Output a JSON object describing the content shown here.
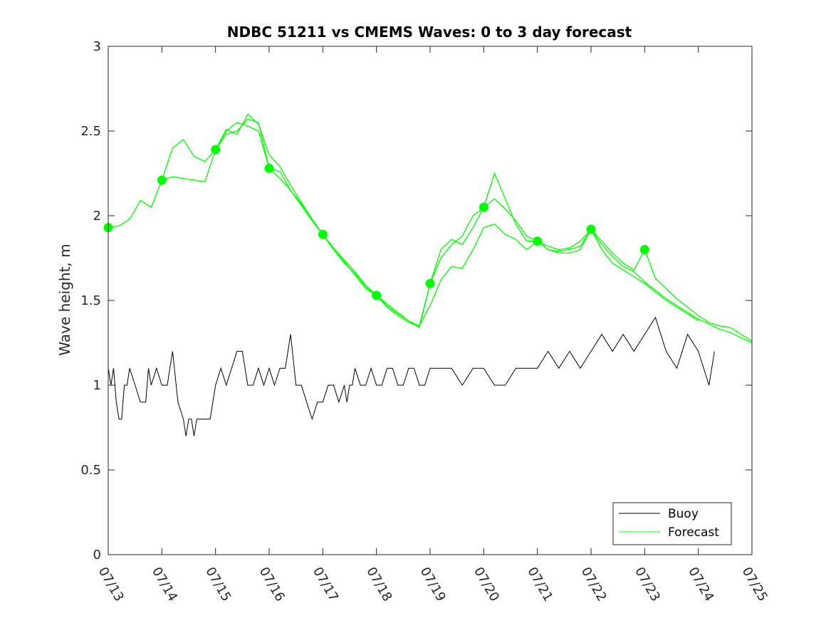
{
  "chart_data": {
    "type": "line",
    "title": "NDBC 51211 vs CMEMS Waves: 0 to 3 day forecast",
    "xlabel": "",
    "ylabel": "Wave height, m",
    "xlim": [
      "07/13",
      "07/25"
    ],
    "ylim": [
      0,
      3
    ],
    "x_ticks": [
      "07/13",
      "07/14",
      "07/15",
      "07/16",
      "07/17",
      "07/18",
      "07/19",
      "07/20",
      "07/21",
      "07/22",
      "07/23",
      "07/24",
      "07/25"
    ],
    "y_ticks": [
      "0",
      "0.5",
      "1",
      "1.5",
      "2",
      "2.5",
      "3"
    ],
    "legend": {
      "position": "bottom-right",
      "entries": [
        "Buoy",
        "Forecast"
      ]
    },
    "colors": {
      "buoy": "#000000",
      "forecast": "#00ff00"
    },
    "grid": false,
    "x_units": "days since 07/13",
    "buoy": {
      "name": "Buoy",
      "x": [
        0,
        0.05,
        0.1,
        0.15,
        0.2,
        0.25,
        0.3,
        0.35,
        0.4,
        0.5,
        0.6,
        0.7,
        0.75,
        0.8,
        0.9,
        1,
        1.1,
        1.15,
        1.2,
        1.3,
        1.4,
        1.45,
        1.5,
        1.55,
        1.6,
        1.65,
        1.7,
        1.8,
        1.9,
        2,
        2.1,
        2.2,
        2.3,
        2.4,
        2.5,
        2.6,
        2.7,
        2.8,
        2.9,
        3,
        3.1,
        3.2,
        3.3,
        3.4,
        3.5,
        3.6,
        3.7,
        3.8,
        3.9,
        4,
        4.1,
        4.2,
        4.3,
        4.4,
        4.45,
        4.5,
        4.55,
        4.6,
        4.7,
        4.8,
        4.9,
        5,
        5.1,
        5.2,
        5.3,
        5.4,
        5.5,
        5.6,
        5.7,
        5.8,
        5.9,
        6,
        6.2,
        6.4,
        6.6,
        6.8,
        7,
        7.2,
        7.4,
        7.6,
        7.8,
        8,
        8.2,
        8.4,
        8.6,
        8.8,
        9,
        9.2,
        9.4,
        9.6,
        9.8,
        10,
        10.2,
        10.4,
        10.6,
        10.8,
        11,
        11.2,
        11.3
      ],
      "y": [
        1.1,
        1.0,
        1.1,
        0.9,
        0.8,
        0.8,
        1.0,
        1.0,
        1.1,
        1.0,
        0.9,
        0.9,
        1.1,
        1.0,
        1.1,
        1.0,
        1.0,
        1.1,
        1.2,
        0.9,
        0.8,
        0.7,
        0.8,
        0.8,
        0.7,
        0.8,
        0.8,
        0.8,
        0.8,
        1.0,
        1.1,
        1.0,
        1.1,
        1.2,
        1.2,
        1.0,
        1.0,
        1.1,
        1.0,
        1.1,
        1.0,
        1.1,
        1.1,
        1.3,
        1.0,
        1.0,
        0.9,
        0.8,
        0.9,
        0.9,
        1.0,
        1.0,
        0.9,
        1.0,
        0.9,
        1.0,
        1.0,
        1.1,
        1.0,
        1.0,
        1.1,
        1.0,
        1.0,
        1.1,
        1.1,
        1.0,
        1.0,
        1.1,
        1.1,
        1.0,
        1.0,
        1.1,
        1.1,
        1.1,
        1.0,
        1.1,
        1.1,
        1.0,
        1.0,
        1.1,
        1.1,
        1.1,
        1.2,
        1.1,
        1.2,
        1.1,
        1.2,
        1.3,
        1.2,
        1.3,
        1.2,
        1.3,
        1.4,
        1.2,
        1.1,
        1.3,
        1.2,
        1.0,
        1.2
      ]
    },
    "forecast_runs": [
      {
        "name": "Forecast",
        "x": [
          0,
          0.2,
          0.4,
          0.6,
          0.8,
          1,
          1.2,
          1.4,
          1.6,
          1.8,
          2,
          2.2,
          2.4,
          2.6,
          2.8,
          3
        ],
        "y": [
          1.93,
          1.94,
          1.98,
          2.09,
          2.05,
          2.21,
          2.4,
          2.45,
          2.35,
          2.32,
          2.39,
          2.48,
          2.5,
          2.57,
          2.55,
          2.28
        ]
      },
      {
        "name": "Forecast",
        "x": [
          1,
          1.2,
          1.4,
          1.6,
          1.8,
          2,
          2.2,
          2.4,
          2.6,
          2.8,
          3,
          3.2,
          3.4,
          3.6,
          3.8,
          4
        ],
        "y": [
          2.21,
          2.23,
          2.22,
          2.21,
          2.2,
          2.39,
          2.51,
          2.48,
          2.6,
          2.54,
          2.36,
          2.29,
          2.18,
          2.08,
          1.98,
          1.89
        ]
      },
      {
        "name": "Forecast",
        "x": [
          2,
          2.2,
          2.4,
          2.6,
          2.8,
          3,
          3.2,
          3.4,
          3.6,
          3.8,
          4,
          4.2,
          4.4,
          4.6,
          4.8,
          5
        ],
        "y": [
          2.39,
          2.5,
          2.55,
          2.53,
          2.5,
          2.28,
          2.22,
          2.15,
          2.06,
          1.97,
          1.89,
          1.8,
          1.72,
          1.66,
          1.58,
          1.53
        ]
      },
      {
        "name": "Forecast",
        "x": [
          3,
          3.2,
          3.4,
          3.6,
          3.8,
          4,
          4.2,
          4.4,
          4.6,
          4.8,
          5,
          5.2,
          5.4,
          5.6,
          5.8,
          6
        ],
        "y": [
          2.28,
          2.26,
          2.15,
          2.07,
          1.98,
          1.89,
          1.8,
          1.73,
          1.65,
          1.57,
          1.53,
          1.47,
          1.42,
          1.38,
          1.34,
          1.6
        ]
      },
      {
        "name": "Forecast",
        "x": [
          4,
          4.2,
          4.4,
          4.6,
          4.8,
          5,
          5.2,
          5.4,
          5.6,
          5.8,
          6,
          6.2,
          6.4,
          6.6,
          6.8,
          7
        ],
        "y": [
          1.89,
          1.81,
          1.74,
          1.67,
          1.59,
          1.53,
          1.46,
          1.41,
          1.37,
          1.35,
          1.6,
          1.8,
          1.86,
          1.83,
          1.93,
          2.05
        ]
      },
      {
        "name": "Forecast",
        "x": [
          5,
          5.2,
          5.4,
          5.6,
          5.8,
          6,
          6.2,
          6.4,
          6.6,
          6.8,
          7,
          7.2,
          7.4,
          7.6,
          7.8,
          8
        ],
        "y": [
          1.53,
          1.48,
          1.43,
          1.38,
          1.35,
          1.47,
          1.62,
          1.7,
          1.69,
          1.8,
          1.93,
          1.95,
          1.89,
          1.86,
          1.8,
          1.85
        ]
      },
      {
        "name": "Forecast",
        "x": [
          6,
          6.2,
          6.4,
          6.6,
          6.8,
          7,
          7.2,
          7.4,
          7.6,
          7.8,
          8,
          8.2,
          8.4,
          8.6,
          8.8,
          9
        ],
        "y": [
          1.6,
          1.75,
          1.83,
          1.88,
          2.0,
          2.05,
          2.25,
          2.1,
          1.95,
          1.85,
          1.85,
          1.8,
          1.79,
          1.8,
          1.82,
          1.92
        ]
      },
      {
        "name": "Forecast",
        "x": [
          7,
          7.2,
          7.4,
          7.6,
          7.8,
          8,
          8.2,
          8.4,
          8.6,
          8.8,
          9,
          9.2,
          9.4,
          9.6,
          9.8,
          10
        ],
        "y": [
          2.05,
          2.1,
          2.04,
          1.97,
          1.88,
          1.85,
          1.82,
          1.8,
          1.81,
          1.85,
          1.92,
          1.85,
          1.78,
          1.72,
          1.68,
          1.8
        ]
      },
      {
        "name": "Forecast",
        "x": [
          8,
          8.2,
          8.4,
          8.6,
          8.8,
          9,
          9.2,
          9.4,
          9.6,
          9.8,
          10,
          10.2,
          10.4,
          10.6,
          10.8,
          11
        ],
        "y": [
          1.85,
          1.8,
          1.78,
          1.78,
          1.8,
          1.92,
          1.8,
          1.72,
          1.68,
          1.64,
          1.6,
          1.55,
          1.5,
          1.46,
          1.42,
          1.38
        ]
      },
      {
        "name": "Forecast",
        "x": [
          9,
          9.2,
          9.4,
          9.6,
          9.8,
          10,
          10.2,
          10.4,
          10.6,
          10.8,
          11,
          11.2,
          11.4,
          11.6,
          11.8,
          12
        ],
        "y": [
          1.92,
          1.83,
          1.76,
          1.7,
          1.67,
          1.61,
          1.56,
          1.51,
          1.47,
          1.43,
          1.39,
          1.36,
          1.33,
          1.31,
          1.28,
          1.25
        ]
      },
      {
        "name": "Forecast",
        "x": [
          10,
          10.2,
          10.4,
          10.6,
          10.8,
          11,
          11.2,
          11.4,
          11.6,
          11.8,
          12
        ],
        "y": [
          1.8,
          1.63,
          1.57,
          1.51,
          1.46,
          1.41,
          1.37,
          1.35,
          1.34,
          1.3,
          1.26
        ]
      }
    ],
    "forecast_markers": {
      "x": [
        0,
        1,
        2,
        3,
        4,
        5,
        6,
        7,
        8,
        9,
        10
      ],
      "y": [
        1.93,
        2.21,
        2.39,
        2.28,
        1.89,
        1.53,
        1.6,
        2.05,
        1.85,
        1.92,
        1.8
      ]
    }
  }
}
